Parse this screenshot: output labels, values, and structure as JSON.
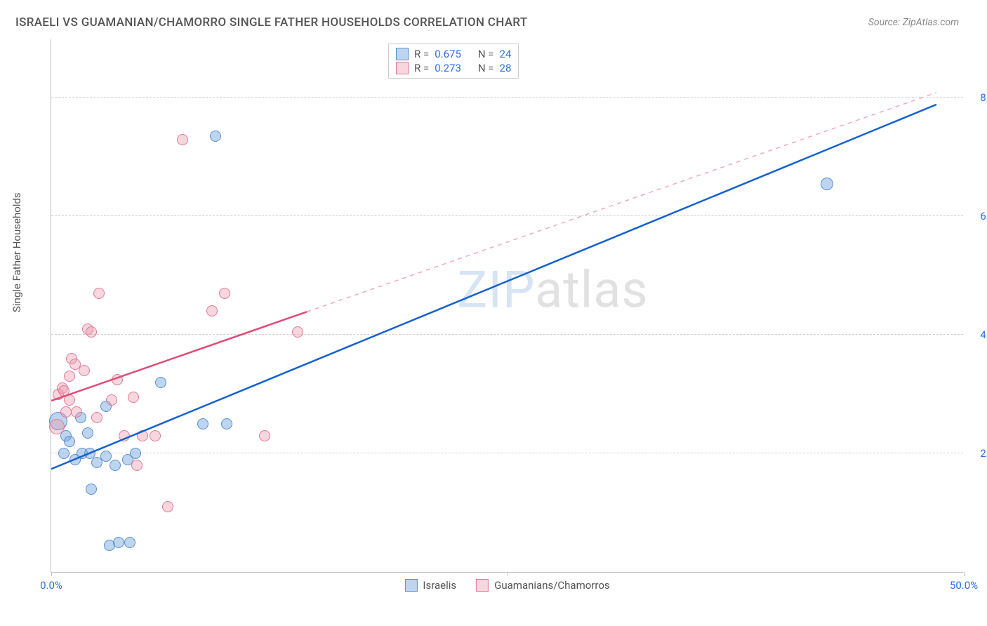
{
  "header": {
    "title": "ISRAELI VS GUAMANIAN/CHAMORRO SINGLE FATHER HOUSEHOLDS CORRELATION CHART",
    "source": "Source: ZipAtlas.com"
  },
  "chart": {
    "type": "scatter",
    "ylabel": "Single Father Households",
    "xlim": [
      0,
      50
    ],
    "ylim": [
      0,
      9
    ],
    "x_ticks": [
      0,
      25,
      50
    ],
    "x_tick_labels": [
      "0.0%",
      "",
      "50.0%"
    ],
    "y_gridlines": [
      2,
      4,
      6,
      8
    ],
    "y_tick_labels": [
      "2.0%",
      "4.0%",
      "6.0%",
      "8.0%"
    ],
    "grid_color": "#d0d0d0",
    "axis_color": "#bfbfbf",
    "background_color": "#ffffff",
    "watermark": "ZIPatlas",
    "series": [
      {
        "key": "israelis",
        "label": "Israelis",
        "color_fill": "rgba(108,161,219,0.45)",
        "color_stroke": "#5a90cf",
        "trend_color": "#1560d0",
        "trend_dash_color": "#1560d0",
        "R": "0.675",
        "N": "24",
        "points": [
          {
            "x": 0.4,
            "y": 2.55,
            "r": 13
          },
          {
            "x": 0.8,
            "y": 2.3,
            "r": 8
          },
          {
            "x": 1.0,
            "y": 2.2,
            "r": 8
          },
          {
            "x": 1.3,
            "y": 1.9,
            "r": 8
          },
          {
            "x": 1.7,
            "y": 2.0,
            "r": 8
          },
          {
            "x": 2.1,
            "y": 2.0,
            "r": 8
          },
          {
            "x": 2.5,
            "y": 1.85,
            "r": 8
          },
          {
            "x": 3.0,
            "y": 1.95,
            "r": 8
          },
          {
            "x": 3.5,
            "y": 1.8,
            "r": 8
          },
          {
            "x": 3.0,
            "y": 2.8,
            "r": 8
          },
          {
            "x": 4.2,
            "y": 1.9,
            "r": 8
          },
          {
            "x": 4.6,
            "y": 2.0,
            "r": 8
          },
          {
            "x": 6.0,
            "y": 3.2,
            "r": 8
          },
          {
            "x": 8.3,
            "y": 2.5,
            "r": 8
          },
          {
            "x": 9.6,
            "y": 2.5,
            "r": 8
          },
          {
            "x": 2.2,
            "y": 1.4,
            "r": 8
          },
          {
            "x": 3.2,
            "y": 0.45,
            "r": 8
          },
          {
            "x": 3.7,
            "y": 0.5,
            "r": 8
          },
          {
            "x": 4.3,
            "y": 0.5,
            "r": 8
          },
          {
            "x": 9.0,
            "y": 7.35,
            "r": 8
          },
          {
            "x": 42.5,
            "y": 6.55,
            "r": 9
          },
          {
            "x": 1.6,
            "y": 2.6,
            "r": 8
          },
          {
            "x": 2.0,
            "y": 2.35,
            "r": 8
          },
          {
            "x": 0.7,
            "y": 2.0,
            "r": 8
          }
        ],
        "trend_start": {
          "x": 0,
          "y": 1.75
        },
        "trend_end": {
          "x": 48.5,
          "y": 7.9
        },
        "trend_solid_until_x": 48.5
      },
      {
        "key": "guamanians",
        "label": "Guamanians/Chamorros",
        "color_fill": "rgba(236,152,173,0.40)",
        "color_stroke": "#e27a97",
        "trend_color": "#e04a78",
        "trend_dash_color": "#f2a7bd",
        "R": "0.273",
        "N": "28",
        "points": [
          {
            "x": 0.3,
            "y": 2.45,
            "r": 11
          },
          {
            "x": 0.4,
            "y": 3.0,
            "r": 8
          },
          {
            "x": 0.6,
            "y": 3.1,
            "r": 8
          },
          {
            "x": 0.7,
            "y": 3.05,
            "r": 8
          },
          {
            "x": 1.0,
            "y": 3.3,
            "r": 8
          },
          {
            "x": 1.1,
            "y": 3.6,
            "r": 8
          },
          {
            "x": 1.3,
            "y": 3.5,
            "r": 8
          },
          {
            "x": 1.4,
            "y": 2.7,
            "r": 8
          },
          {
            "x": 1.8,
            "y": 3.4,
            "r": 8
          },
          {
            "x": 2.0,
            "y": 4.1,
            "r": 8
          },
          {
            "x": 2.2,
            "y": 4.05,
            "r": 8
          },
          {
            "x": 2.5,
            "y": 2.6,
            "r": 8
          },
          {
            "x": 2.6,
            "y": 4.7,
            "r": 8
          },
          {
            "x": 3.3,
            "y": 2.9,
            "r": 8
          },
          {
            "x": 3.6,
            "y": 3.25,
            "r": 8
          },
          {
            "x": 4.0,
            "y": 2.3,
            "r": 8
          },
          {
            "x": 4.5,
            "y": 2.95,
            "r": 8
          },
          {
            "x": 5.0,
            "y": 2.3,
            "r": 8
          },
          {
            "x": 4.7,
            "y": 1.8,
            "r": 8
          },
          {
            "x": 5.7,
            "y": 2.3,
            "r": 8
          },
          {
            "x": 6.4,
            "y": 1.1,
            "r": 8
          },
          {
            "x": 7.2,
            "y": 7.3,
            "r": 8
          },
          {
            "x": 8.8,
            "y": 4.4,
            "r": 8
          },
          {
            "x": 9.5,
            "y": 4.7,
            "r": 8
          },
          {
            "x": 11.7,
            "y": 2.3,
            "r": 8
          },
          {
            "x": 13.5,
            "y": 4.05,
            "r": 8
          },
          {
            "x": 1.0,
            "y": 2.9,
            "r": 8
          },
          {
            "x": 0.8,
            "y": 2.7,
            "r": 8
          }
        ],
        "trend_start": {
          "x": 0,
          "y": 2.9
        },
        "trend_end": {
          "x": 48.5,
          "y": 8.1
        },
        "trend_solid_until_x": 14.0
      }
    ],
    "legend_top": {
      "label_R": "R =",
      "label_N": "N =",
      "value_color": "#2b6fe0",
      "text_color": "#555555"
    },
    "axis_label_colors": {
      "x": "#2b6fe0",
      "y": "#2b6fe0"
    }
  }
}
